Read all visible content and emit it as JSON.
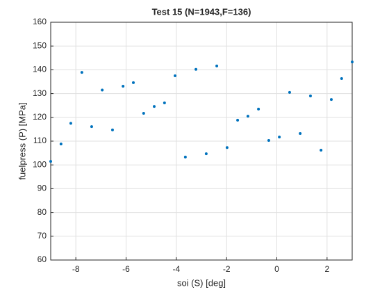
{
  "chart_data": {
    "type": "scatter",
    "title": "Test 15 (N=1943,F=136)",
    "xlabel": "soi (S) [deg]",
    "ylabel": "fuelpress (P) [MPa]",
    "x": [
      -9,
      -8.59,
      -8.2,
      -7.76,
      -7.37,
      -6.95,
      -6.54,
      -6.12,
      -5.71,
      -5.3,
      -4.88,
      -4.47,
      -4.05,
      -3.64,
      -3.22,
      -2.81,
      -2.39,
      -1.98,
      -1.56,
      -1.15,
      -0.73,
      -0.32,
      0.1,
      0.51,
      0.93,
      1.34,
      1.76,
      2.17,
      2.58,
      3
    ],
    "values": [
      101.5,
      108.8,
      117.5,
      138.9,
      116.1,
      131.5,
      114.7,
      133.1,
      134.6,
      121.7,
      124.6,
      126.1,
      137.5,
      103.3,
      140.2,
      104.7,
      141.6,
      107.3,
      118.8,
      120.5,
      123.5,
      110.3,
      111.7,
      130.5,
      113.2,
      129,
      106.2,
      127.5,
      136.3,
      143.3
    ],
    "color": "#0072bd",
    "xlim": [
      -9,
      3
    ],
    "xticks": [
      -8,
      -6,
      -4,
      -2,
      0,
      2
    ],
    "ylim": [
      60,
      160
    ],
    "yticks": [
      60,
      70,
      80,
      90,
      100,
      110,
      120,
      130,
      140,
      150,
      160
    ],
    "grid": true
  }
}
